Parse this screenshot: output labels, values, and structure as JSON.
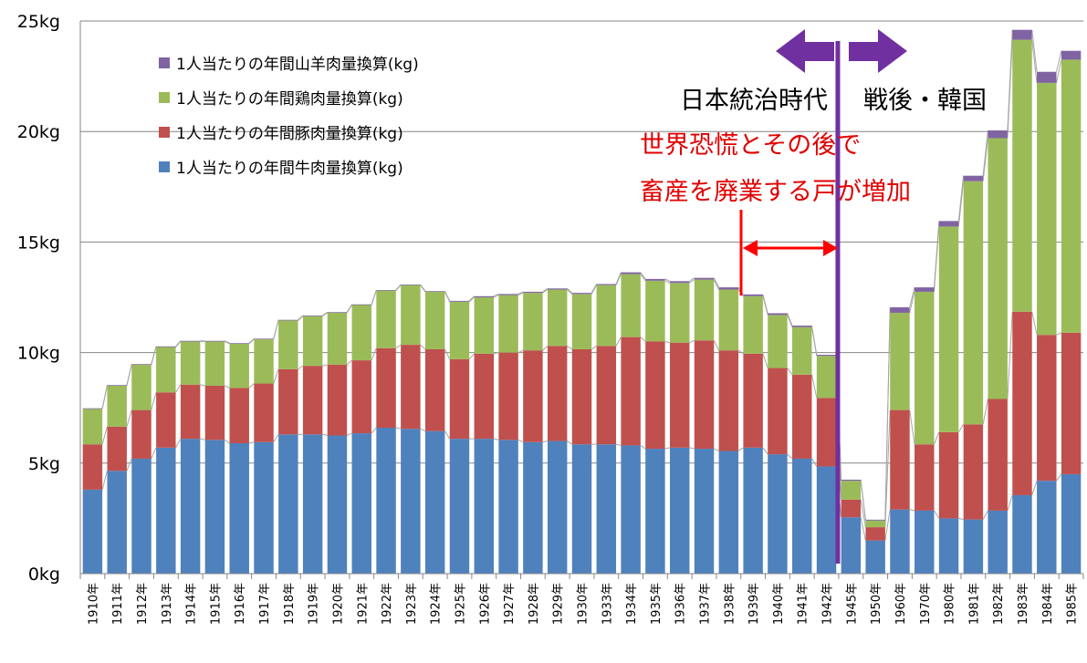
{
  "chart_data": {
    "type": "bar",
    "stacked": true,
    "categories": [
      "1910年",
      "1911年",
      "1912年",
      "1913年",
      "1914年",
      "1915年",
      "1916年",
      "1917年",
      "1918年",
      "1919年",
      "1920年",
      "1921年",
      "1922年",
      "1923年",
      "1924年",
      "1925年",
      "1926年",
      "1927年",
      "1928年",
      "1929年",
      "1930年",
      "1933年",
      "1934年",
      "1935年",
      "1936年",
      "1937年",
      "1938年",
      "1939年",
      "1940年",
      "1941年",
      "1942年",
      "1945年",
      "1950年",
      "1960年",
      "1970年",
      "1980年",
      "1981年",
      "1982年",
      "1983年",
      "1984年",
      "1985年"
    ],
    "series": [
      {
        "name": "1人当たりの年間牛肉量換算(kg)",
        "color": "#4f81bd",
        "values": [
          3.8,
          4.65,
          5.2,
          5.7,
          6.1,
          6.05,
          5.9,
          5.95,
          6.3,
          6.3,
          6.25,
          6.35,
          6.6,
          6.55,
          6.45,
          6.1,
          6.1,
          6.05,
          5.95,
          6.0,
          5.85,
          5.85,
          5.8,
          5.65,
          5.7,
          5.65,
          5.55,
          5.7,
          5.4,
          5.2,
          4.85,
          2.55,
          1.5,
          2.9,
          2.85,
          2.5,
          2.45,
          2.85,
          3.55,
          4.2,
          4.5
        ]
      },
      {
        "name": "1人当たりの年間豚肉量換算(kg)",
        "color": "#c0504d",
        "values": [
          2.05,
          2.0,
          2.2,
          2.5,
          2.45,
          2.45,
          2.5,
          2.65,
          2.95,
          3.1,
          3.2,
          3.3,
          3.6,
          3.8,
          3.7,
          3.6,
          3.85,
          3.95,
          4.15,
          4.3,
          4.3,
          4.45,
          4.9,
          4.85,
          4.75,
          4.9,
          4.55,
          4.25,
          3.9,
          3.8,
          3.1,
          0.8,
          0.6,
          4.5,
          3.0,
          3.9,
          4.3,
          5.05,
          8.3,
          6.6,
          6.4
        ]
      },
      {
        "name": "1人当たりの年間鶏肉量換算(kg)",
        "color": "#9bbb59",
        "values": [
          1.6,
          1.85,
          2.05,
          2.05,
          1.95,
          2.0,
          2.0,
          2.0,
          2.2,
          2.25,
          2.35,
          2.5,
          2.6,
          2.7,
          2.6,
          2.6,
          2.55,
          2.6,
          2.6,
          2.55,
          2.5,
          2.75,
          2.85,
          2.75,
          2.7,
          2.75,
          2.75,
          2.6,
          2.4,
          2.15,
          1.9,
          0.85,
          0.3,
          4.4,
          6.9,
          9.3,
          11.0,
          11.8,
          12.3,
          11.4,
          12.35
        ]
      },
      {
        "name": "1人当たりの年間山羊肉量換算(kg)",
        "color": "#8064a2",
        "values": [
          0.03,
          0.03,
          0.03,
          0.03,
          0.03,
          0.03,
          0.03,
          0.03,
          0.03,
          0.03,
          0.03,
          0.03,
          0.03,
          0.03,
          0.03,
          0.04,
          0.05,
          0.05,
          0.05,
          0.05,
          0.05,
          0.05,
          0.08,
          0.08,
          0.08,
          0.08,
          0.1,
          0.08,
          0.08,
          0.07,
          0.05,
          0.05,
          0.04,
          0.25,
          0.2,
          0.25,
          0.25,
          0.35,
          0.45,
          0.5,
          0.4
        ]
      }
    ],
    "yticks": [
      "0kg",
      "5kg",
      "10kg",
      "15kg",
      "20kg",
      "25kg"
    ],
    "ylim": [
      0,
      25
    ],
    "grid": true,
    "legend_position": "top-left",
    "eras": {
      "left_label": "日本統治時代",
      "right_label": "戦後・韓国"
    },
    "annotation": {
      "line1": "世界恐慌とその後で",
      "line2": "畜産を廃業する戸が増加"
    },
    "colors": {
      "era_line": "#7030a0",
      "annotation": "#ff0000",
      "connector": "#a6a6a6"
    }
  }
}
